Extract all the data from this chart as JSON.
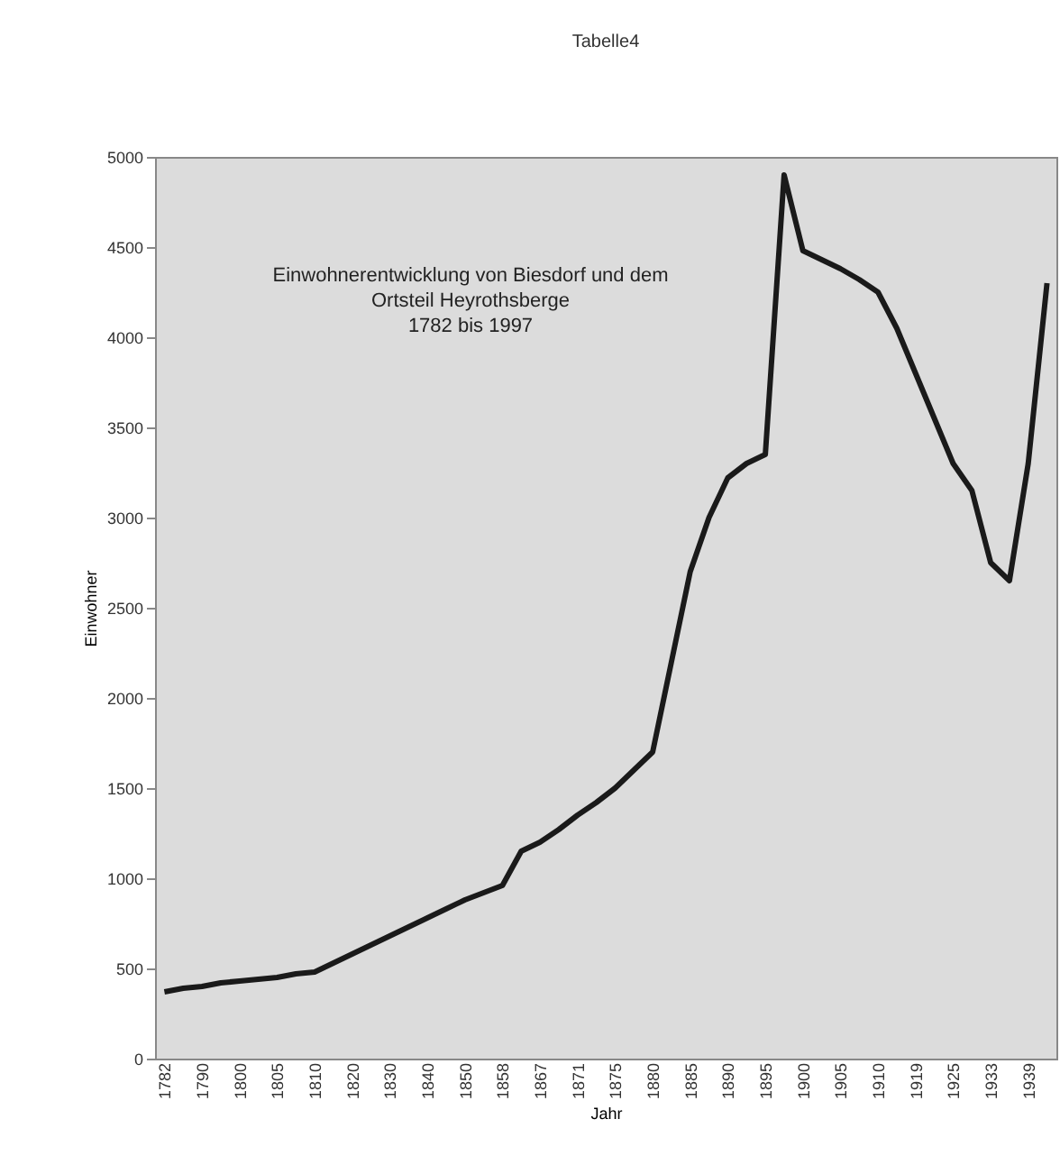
{
  "chart_data": {
    "type": "line",
    "title": "Tabelle4",
    "xlabel": "Jahr",
    "ylabel": "Einwohner",
    "annotations": [
      "Einwohnerentwicklung von Biesdorf und dem\nOrtsteil Heyrothsberge\n1782 bis 1997"
    ],
    "categories": [
      "1782",
      null,
      "1790",
      null,
      "1800",
      null,
      "1805",
      null,
      "1810",
      null,
      "1820",
      null,
      "1830",
      null,
      "1840",
      null,
      "1850",
      null,
      "1858",
      null,
      "1867",
      null,
      "1871",
      null,
      "1875",
      null,
      "1880",
      null,
      "1885",
      null,
      "1890",
      null,
      "1895",
      null,
      "1900",
      null,
      "1905",
      null,
      "1910",
      null,
      "1919",
      null,
      "1925",
      null,
      "1933",
      null,
      "1939",
      null
    ],
    "series": [
      {
        "color": "#1a1a1a",
        "values": [
          370,
          390,
          400,
          420,
          430,
          440,
          450,
          470,
          480,
          530,
          580,
          630,
          680,
          730,
          780,
          830,
          880,
          920,
          960,
          1150,
          1200,
          1270,
          1350,
          1420,
          1500,
          1600,
          1700,
          2200,
          2700,
          3000,
          3220,
          3300,
          3350,
          4900,
          4480,
          4430,
          4380,
          4320,
          4250,
          4050,
          3800,
          3550,
          3300,
          3150,
          2750,
          2650,
          3300,
          4300
        ]
      }
    ],
    "ylim": [
      0,
      5000
    ],
    "yticks": [
      0,
      500,
      1000,
      1500,
      2000,
      2500,
      3000,
      3500,
      4000,
      4500,
      5000
    ],
    "grid": false,
    "marker": "none",
    "line_style": "solid"
  }
}
